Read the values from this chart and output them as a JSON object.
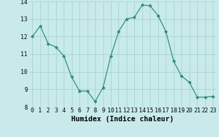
{
  "x": [
    0,
    1,
    2,
    3,
    4,
    5,
    6,
    7,
    8,
    9,
    10,
    11,
    12,
    13,
    14,
    15,
    16,
    17,
    18,
    19,
    20,
    21,
    22,
    23
  ],
  "y": [
    12.0,
    12.6,
    11.6,
    11.4,
    10.9,
    9.7,
    8.9,
    8.9,
    8.3,
    9.1,
    10.9,
    12.3,
    13.0,
    13.1,
    13.8,
    13.75,
    13.2,
    12.3,
    10.6,
    9.75,
    9.4,
    8.55,
    8.55,
    8.6
  ],
  "xlabel": "Humidex (Indice chaleur)",
  "ylim": [
    8,
    14
  ],
  "xlim": [
    -0.5,
    23.5
  ],
  "yticks": [
    8,
    9,
    10,
    11,
    12,
    13,
    14
  ],
  "xticks": [
    0,
    1,
    2,
    3,
    4,
    5,
    6,
    7,
    8,
    9,
    10,
    11,
    12,
    13,
    14,
    15,
    16,
    17,
    18,
    19,
    20,
    21,
    22,
    23
  ],
  "line_color": "#2e8b7a",
  "marker_color": "#2e8b7a",
  "bg_color": "#c8eaea",
  "grid_color": "#a0cccc",
  "xlabel_fontsize": 7.5,
  "tick_fontsize": 6.0
}
